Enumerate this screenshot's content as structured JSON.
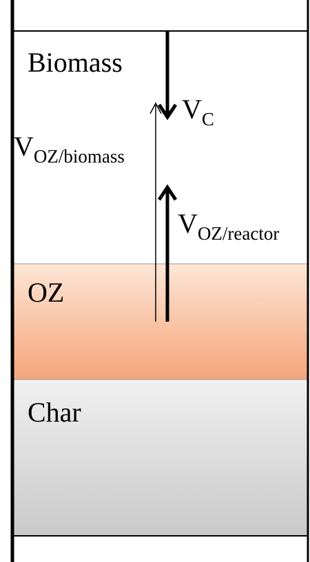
{
  "regions": [
    {
      "label": "Biomass"
    },
    {
      "label": "OZ"
    },
    {
      "label": "Char"
    }
  ],
  "velocities": [
    {
      "symbol": "V",
      "subscript": "C"
    },
    {
      "symbol": "V",
      "subscript": "OZ/biomass"
    },
    {
      "symbol": "V",
      "subscript": "OZ/reactor"
    }
  ]
}
